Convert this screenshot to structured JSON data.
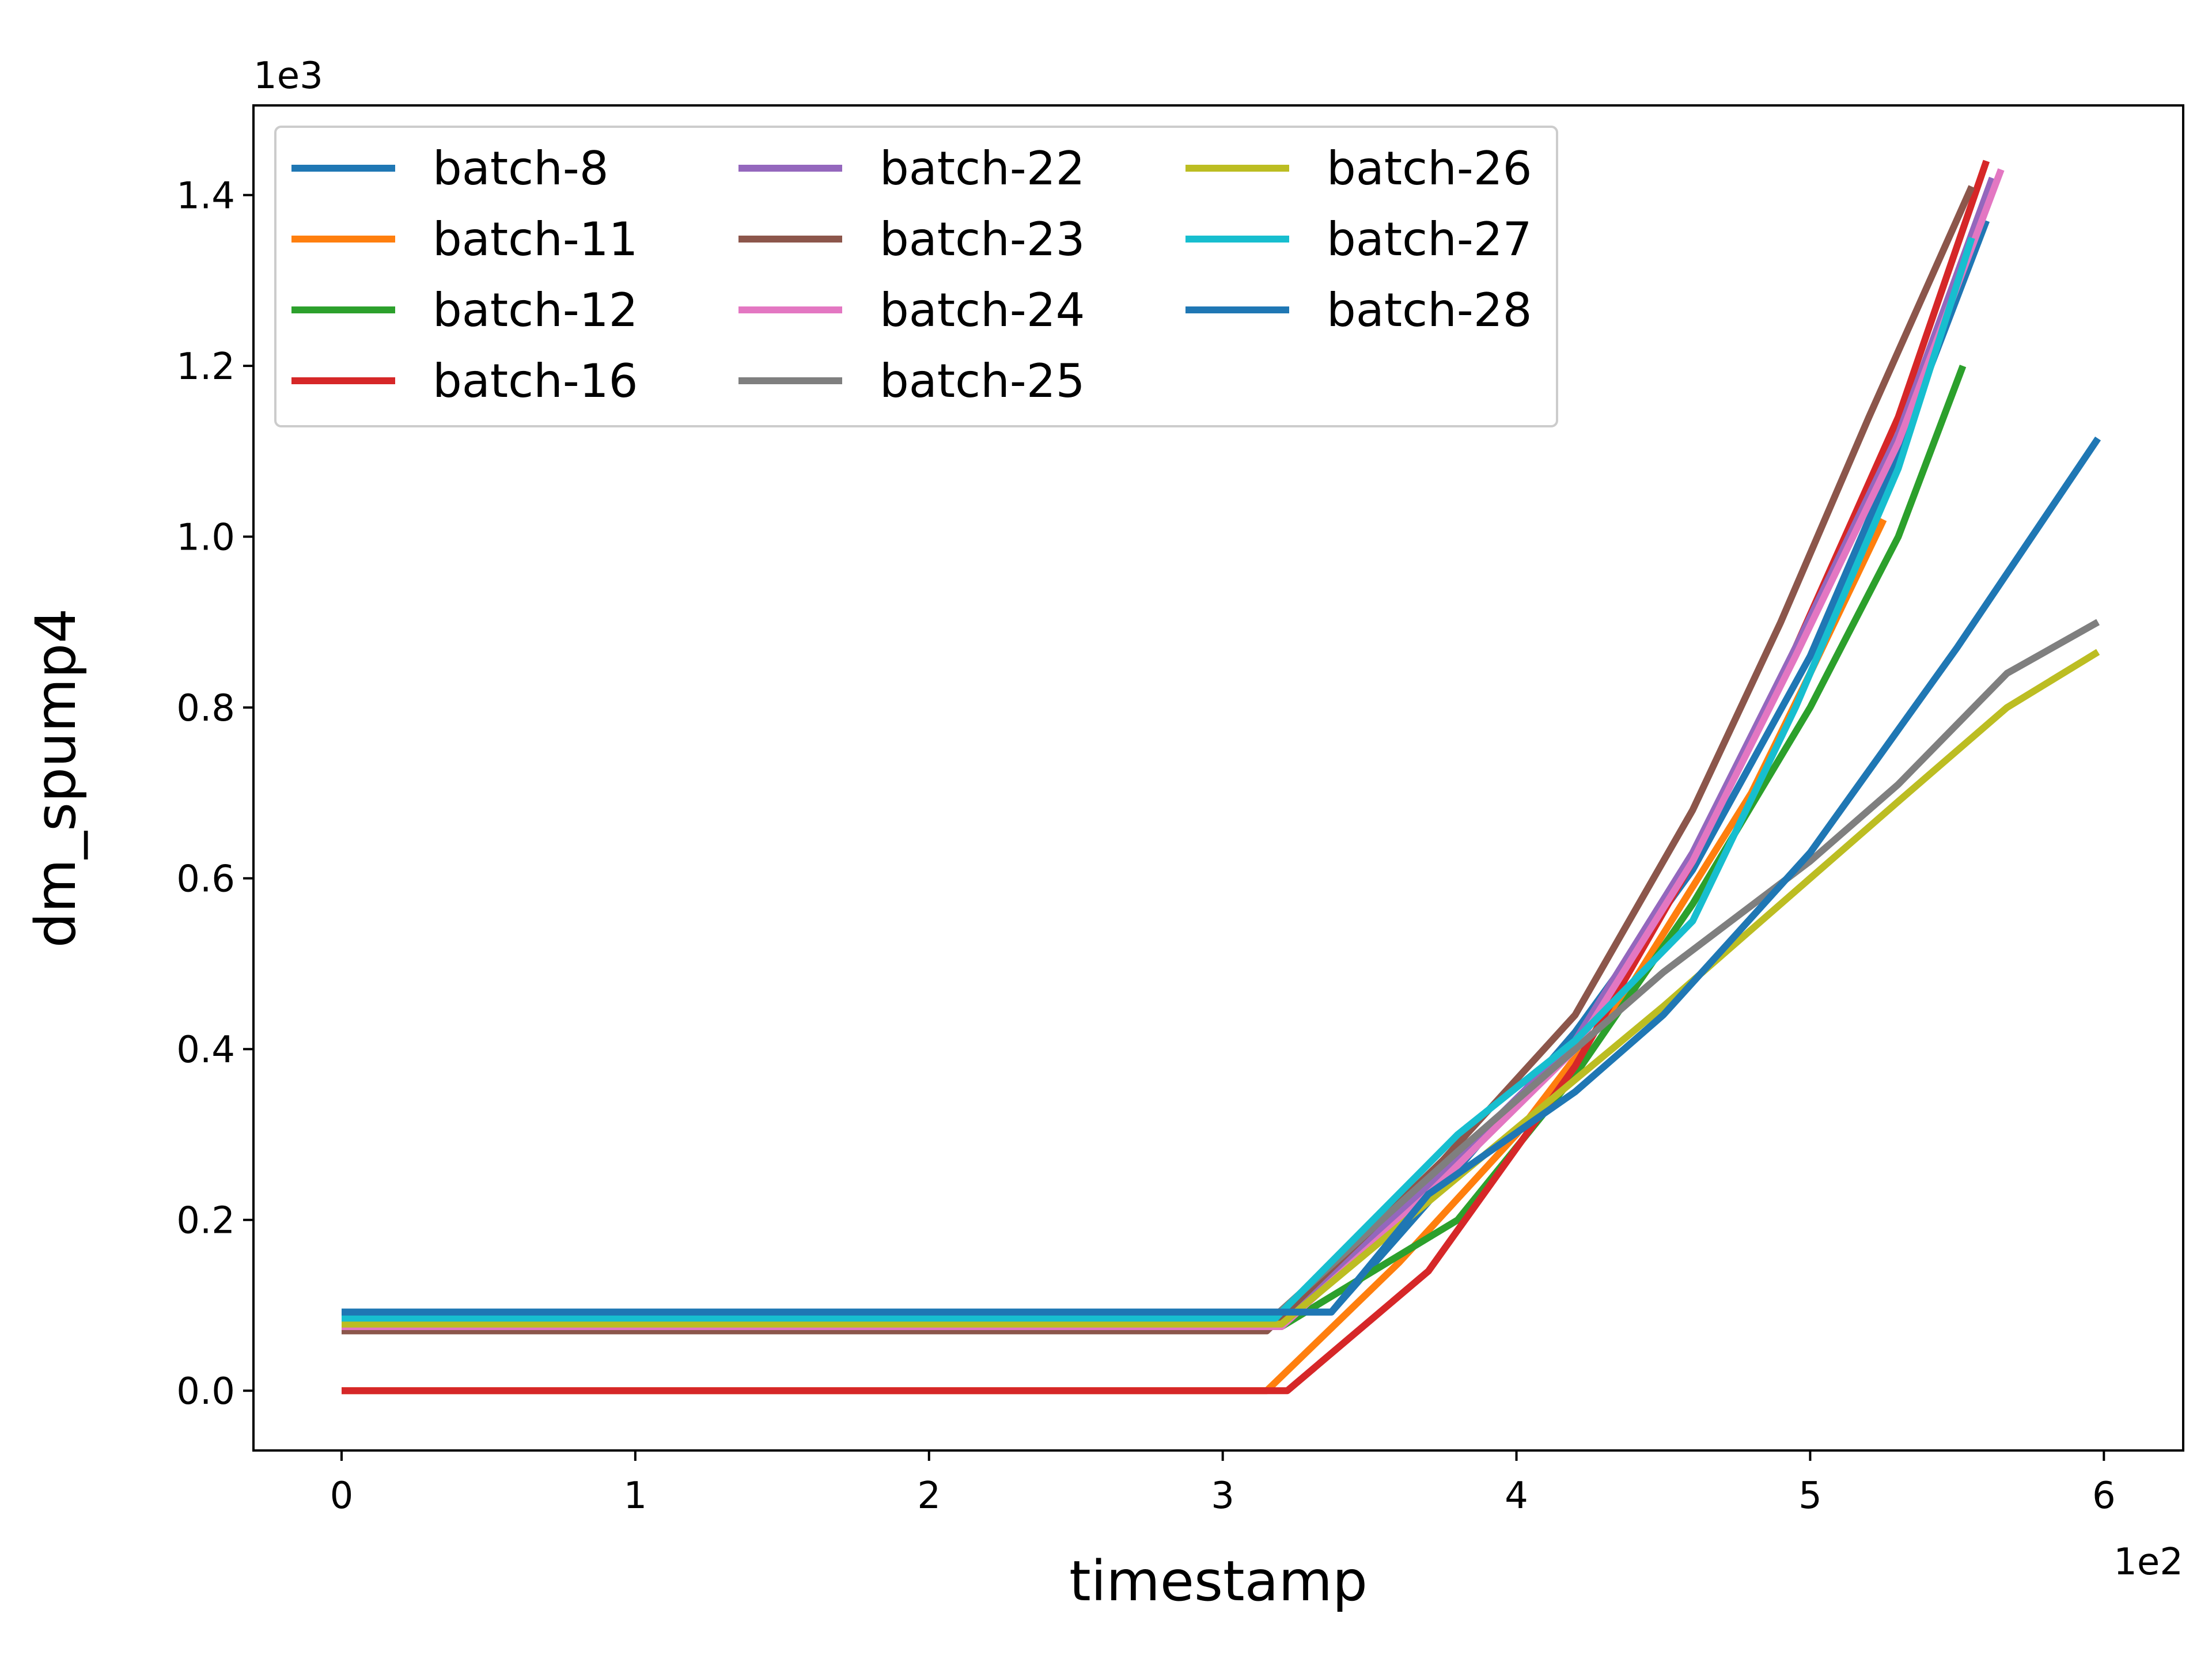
{
  "chart_data": {
    "type": "line",
    "title": "",
    "xlabel": "timestamp",
    "ylabel": "dm_spump4",
    "x_multiplier": "1e2",
    "y_multiplier": "1e3",
    "xlim": [
      -0.3,
      6.27
    ],
    "ylim": [
      -0.07,
      1.505
    ],
    "xticks": [
      "0",
      "1",
      "2",
      "3",
      "4",
      "5",
      "6"
    ],
    "yticks": [
      "0.0",
      "0.2",
      "0.4",
      "0.6",
      "0.8",
      "1.0",
      "1.2",
      "1.4"
    ],
    "grid": false,
    "legend_position": "upper-left",
    "legend_columns": 3,
    "series": [
      {
        "name": "batch-8",
        "color": "#1f77b4",
        "x": [
          0,
          3.37,
          3.8,
          4.2,
          4.6,
          5.0,
          5.3,
          5.6
        ],
        "y": [
          0.092,
          0.092,
          0.26,
          0.42,
          0.61,
          0.86,
          1.1,
          1.37
        ]
      },
      {
        "name": "batch-11",
        "color": "#ff7f0e",
        "x": [
          0,
          3.15,
          3.6,
          4.0,
          4.4,
          4.8,
          5.0,
          5.25
        ],
        "y": [
          0.0,
          0.0,
          0.15,
          0.3,
          0.48,
          0.7,
          0.84,
          1.02
        ]
      },
      {
        "name": "batch-12",
        "color": "#2ca02c",
        "x": [
          0,
          3.2,
          3.8,
          4.2,
          4.6,
          5.0,
          5.3,
          5.52
        ],
        "y": [
          0.075,
          0.075,
          0.2,
          0.37,
          0.57,
          0.8,
          1.0,
          1.2
        ]
      },
      {
        "name": "batch-16",
        "color": "#d62728",
        "x": [
          0,
          3.22,
          3.7,
          4.2,
          4.6,
          4.95,
          5.3,
          5.6
        ],
        "y": [
          0.0,
          0.0,
          0.14,
          0.38,
          0.62,
          0.87,
          1.14,
          1.44
        ]
      },
      {
        "name": "batch-22",
        "color": "#9467bd",
        "x": [
          0,
          3.2,
          3.7,
          4.2,
          4.6,
          4.95,
          5.3,
          5.62
        ],
        "y": [
          0.08,
          0.08,
          0.24,
          0.41,
          0.63,
          0.87,
          1.12,
          1.42
        ]
      },
      {
        "name": "batch-23",
        "color": "#8c564b",
        "x": [
          0,
          3.15,
          3.75,
          4.2,
          4.3,
          4.6,
          4.9,
          5.2,
          5.55
        ],
        "y": [
          0.07,
          0.07,
          0.27,
          0.44,
          0.5,
          0.68,
          0.9,
          1.14,
          1.41
        ]
      },
      {
        "name": "batch-24",
        "color": "#e377c2",
        "x": [
          0,
          3.2,
          3.7,
          4.2,
          4.6,
          4.95,
          5.3,
          5.65
        ],
        "y": [
          0.075,
          0.075,
          0.23,
          0.4,
          0.62,
          0.86,
          1.11,
          1.43
        ]
      },
      {
        "name": "batch-25",
        "color": "#7f7f7f",
        "x": [
          0,
          3.17,
          3.8,
          4.5,
          5.0,
          5.3,
          5.67,
          5.98
        ],
        "y": [
          0.085,
          0.085,
          0.28,
          0.49,
          0.62,
          0.71,
          0.84,
          0.9
        ]
      },
      {
        "name": "batch-26",
        "color": "#bcbd22",
        "x": [
          0,
          3.2,
          3.8,
          4.5,
          5.0,
          5.3,
          5.67,
          5.98
        ],
        "y": [
          0.078,
          0.078,
          0.25,
          0.45,
          0.6,
          0.69,
          0.8,
          0.865
        ]
      },
      {
        "name": "batch-27",
        "color": "#17becf",
        "x": [
          0,
          3.18,
          3.8,
          4.2,
          4.6,
          4.95,
          5.3,
          5.55
        ],
        "y": [
          0.085,
          0.085,
          0.3,
          0.41,
          0.55,
          0.8,
          1.08,
          1.35
        ]
      },
      {
        "name": "batch-28",
        "color": "#1f77b4",
        "x": [
          0,
          3.37,
          3.7,
          4.2,
          4.5,
          5.0,
          5.5,
          5.98
        ],
        "y": [
          0.092,
          0.092,
          0.23,
          0.35,
          0.44,
          0.63,
          0.87,
          1.115
        ]
      }
    ]
  }
}
